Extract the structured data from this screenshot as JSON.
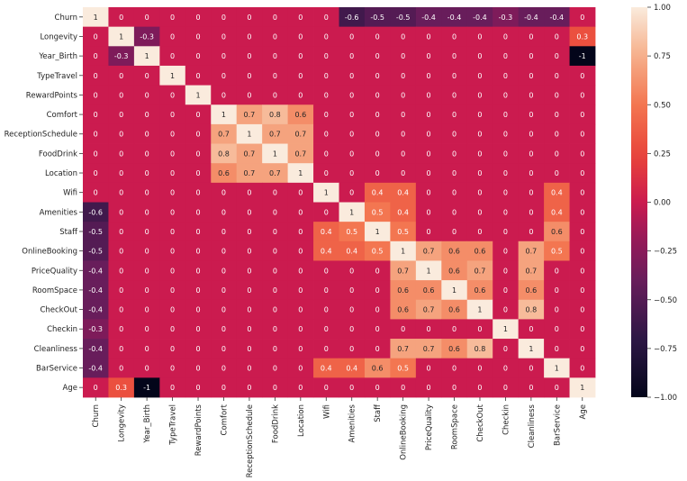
{
  "chart_data": {
    "type": "heatmap",
    "title": "",
    "xlabel": "",
    "ylabel": "",
    "variables": [
      "Churn",
      "Longevity",
      "Year_Birth",
      "TypeTravel",
      "RewardPoints",
      "Comfort",
      "ReceptionSchedule",
      "FoodDrink",
      "Location",
      "Wifi",
      "Amenities",
      "Staff",
      "OnlineBooking",
      "PriceQuality",
      "RoomSpace",
      "CheckOut",
      "Checkin",
      "Cleanliness",
      "BarService",
      "Age"
    ],
    "value_range": [
      -1,
      1
    ],
    "colormap": "rocket",
    "values": [
      [
        1,
        0,
        0,
        0,
        0,
        0,
        0,
        0,
        0,
        0,
        -0.6,
        -0.5,
        -0.5,
        -0.4,
        -0.4,
        -0.4,
        -0.3,
        -0.4,
        -0.4,
        0
      ],
      [
        0,
        1,
        -0.3,
        0,
        0,
        0,
        0,
        0,
        0,
        0,
        0,
        0,
        0,
        0,
        0,
        0,
        0,
        0,
        0,
        0.3
      ],
      [
        0,
        -0.3,
        1,
        0,
        0,
        0,
        0,
        0,
        0,
        0,
        0,
        0,
        0,
        0,
        0,
        0,
        0,
        0,
        0,
        -1
      ],
      [
        0,
        0,
        0,
        1,
        0,
        0,
        0,
        0,
        0,
        0,
        0,
        0,
        0,
        0,
        0,
        0,
        0,
        0,
        0,
        0
      ],
      [
        0,
        0,
        0,
        0,
        1,
        0,
        0,
        0,
        0,
        0,
        0,
        0,
        0,
        0,
        0,
        0,
        0,
        0,
        0,
        0
      ],
      [
        0,
        0,
        0,
        0,
        0,
        1,
        0.7,
        0.8,
        0.6,
        0,
        0,
        0,
        0,
        0,
        0,
        0,
        0,
        0,
        0,
        0
      ],
      [
        0,
        0,
        0,
        0,
        0,
        0.7,
        1,
        0.7,
        0.7,
        0,
        0,
        0,
        0,
        0,
        0,
        0,
        0,
        0,
        0,
        0
      ],
      [
        0,
        0,
        0,
        0,
        0,
        0.8,
        0.7,
        1,
        0.7,
        0,
        0,
        0,
        0,
        0,
        0,
        0,
        0,
        0,
        0,
        0
      ],
      [
        0,
        0,
        0,
        0,
        0,
        0.6,
        0.7,
        0.7,
        1,
        0,
        0,
        0,
        0,
        0,
        0,
        0,
        0,
        0,
        0,
        0
      ],
      [
        0,
        0,
        0,
        0,
        0,
        0,
        0,
        0,
        0,
        1,
        0,
        0.4,
        0.4,
        0,
        0,
        0,
        0,
        0,
        0.4,
        0
      ],
      [
        -0.6,
        0,
        0,
        0,
        0,
        0,
        0,
        0,
        0,
        0,
        1,
        0.5,
        0.4,
        0,
        0,
        0,
        0,
        0,
        0.4,
        0
      ],
      [
        -0.5,
        0,
        0,
        0,
        0,
        0,
        0,
        0,
        0,
        0.4,
        0.5,
        1,
        0.5,
        0,
        0,
        0,
        0,
        0,
        0.6,
        0
      ],
      [
        -0.5,
        0,
        0,
        0,
        0,
        0,
        0,
        0,
        0,
        0.4,
        0.4,
        0.5,
        1,
        0.7,
        0.6,
        0.6,
        0,
        0.7,
        0.5,
        0
      ],
      [
        -0.4,
        0,
        0,
        0,
        0,
        0,
        0,
        0,
        0,
        0,
        0,
        0,
        0.7,
        1,
        0.6,
        0.7,
        0,
        0.7,
        0,
        0
      ],
      [
        -0.4,
        0,
        0,
        0,
        0,
        0,
        0,
        0,
        0,
        0,
        0,
        0,
        0.6,
        0.6,
        1,
        0.6,
        0,
        0.6,
        0,
        0
      ],
      [
        -0.4,
        0,
        0,
        0,
        0,
        0,
        0,
        0,
        0,
        0,
        0,
        0,
        0.6,
        0.7,
        0.6,
        1,
        0,
        0.8,
        0,
        0
      ],
      [
        -0.3,
        0,
        0,
        0,
        0,
        0,
        0,
        0,
        0,
        0,
        0,
        0,
        0,
        0,
        0,
        0,
        1,
        0,
        0,
        0
      ],
      [
        -0.4,
        0,
        0,
        0,
        0,
        0,
        0,
        0,
        0,
        0,
        0,
        0,
        0.7,
        0.7,
        0.6,
        0.8,
        0,
        1,
        0,
        0
      ],
      [
        -0.4,
        0,
        0,
        0,
        0,
        0,
        0,
        0,
        0,
        0.4,
        0.4,
        0.6,
        0.5,
        0,
        0,
        0,
        0,
        0,
        1,
        0
      ],
      [
        0,
        0.3,
        -1,
        0,
        0,
        0,
        0,
        0,
        0,
        0,
        0,
        0,
        0,
        0,
        0,
        0,
        0,
        0,
        0,
        1
      ]
    ],
    "colorbar_ticks": [
      1.0,
      0.75,
      0.5,
      0.25,
      0.0,
      -0.25,
      -0.5,
      -0.75,
      -1.0
    ],
    "colorbar_tick_labels": [
      "1.00",
      "0.75",
      "0.50",
      "0.25",
      "0.00",
      "−0.25",
      "−0.50",
      "−0.75",
      "−1.00"
    ],
    "grid": false,
    "legend": "colorbar-right"
  }
}
